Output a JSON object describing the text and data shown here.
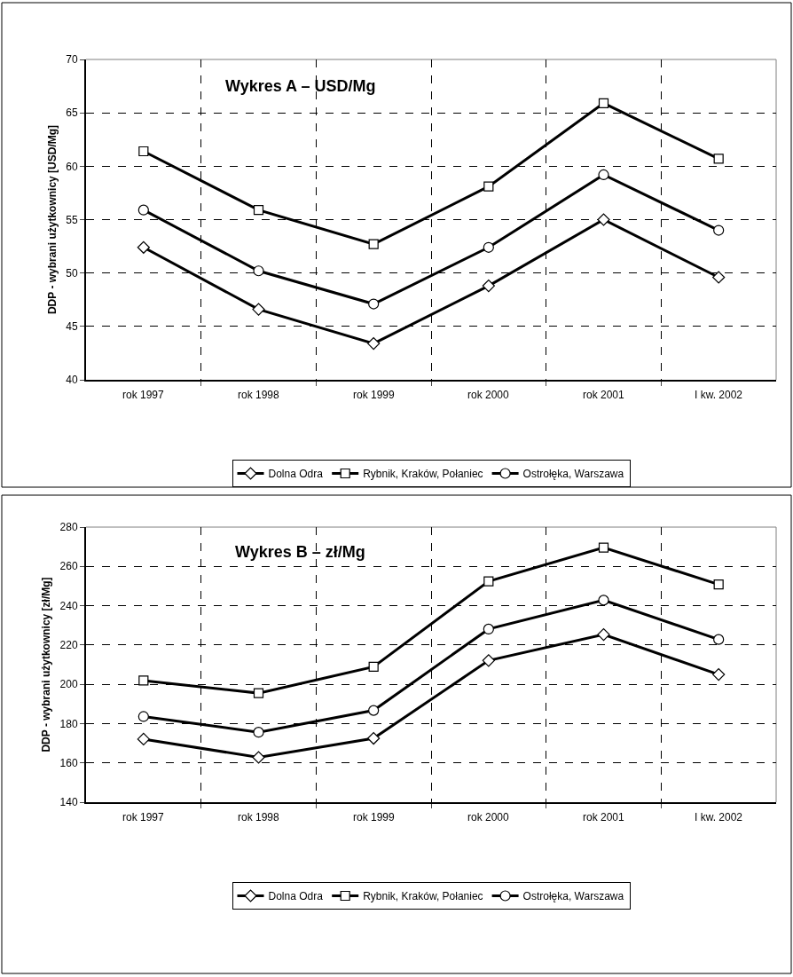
{
  "chart_data": [
    {
      "type": "line",
      "title": "Wykres A – USD/Mg",
      "ylabel": "DDP - wybrani użytkownicy [USD/Mg]",
      "categories": [
        "rok 1997",
        "rok 1998",
        "rok 1999",
        "rok 2000",
        "rok 2001",
        "I kw. 2002"
      ],
      "series": [
        {
          "name": "Dolna Odra",
          "color": "#000000",
          "marker": "diamond",
          "values": [
            52.4,
            46.6,
            43.4,
            48.8,
            55.0,
            49.6
          ]
        },
        {
          "name": "Rybnik, Kraków, Połaniec",
          "color": "#000000",
          "marker": "square",
          "values": [
            61.4,
            55.9,
            52.7,
            58.1,
            65.9,
            60.7
          ]
        },
        {
          "name": "Ostrołęka, Warszawa",
          "color": "#000000",
          "marker": "circle",
          "values": [
            55.9,
            50.2,
            47.1,
            52.4,
            59.2,
            54.0
          ]
        }
      ],
      "ylim": [
        40,
        70
      ],
      "yticks": [
        40,
        45,
        50,
        55,
        60,
        65,
        70
      ],
      "grid": true,
      "legend": "bottom",
      "line_style": "solid"
    },
    {
      "type": "line",
      "title": "Wykres B – zł/Mg",
      "ylabel": "DDP - wybrani użytkownicy [zł/Mg]",
      "categories": [
        "rok 1997",
        "rok 1998",
        "rok 1999",
        "rok 2000",
        "rok 2001",
        "I kw. 2002"
      ],
      "series": [
        {
          "name": "Dolna Odra",
          "color": "#000000",
          "marker": "diamond",
          "values": [
            172.1,
            162.8,
            172.5,
            212.1,
            225.3,
            205.0
          ]
        },
        {
          "name": "Rybnik, Kraków, Połaniec",
          "color": "#000000",
          "marker": "square",
          "values": [
            201.9,
            195.5,
            208.9,
            252.4,
            269.6,
            250.8
          ]
        },
        {
          "name": "Ostrołęka, Warszawa",
          "color": "#000000",
          "marker": "circle",
          "values": [
            183.6,
            175.6,
            186.7,
            228.1,
            242.8,
            222.8
          ]
        }
      ],
      "ylim": [
        140,
        280
      ],
      "yticks": [
        140,
        160,
        180,
        200,
        220,
        240,
        260,
        280
      ],
      "grid": true,
      "legend": "bottom",
      "line_style": "solid"
    }
  ]
}
